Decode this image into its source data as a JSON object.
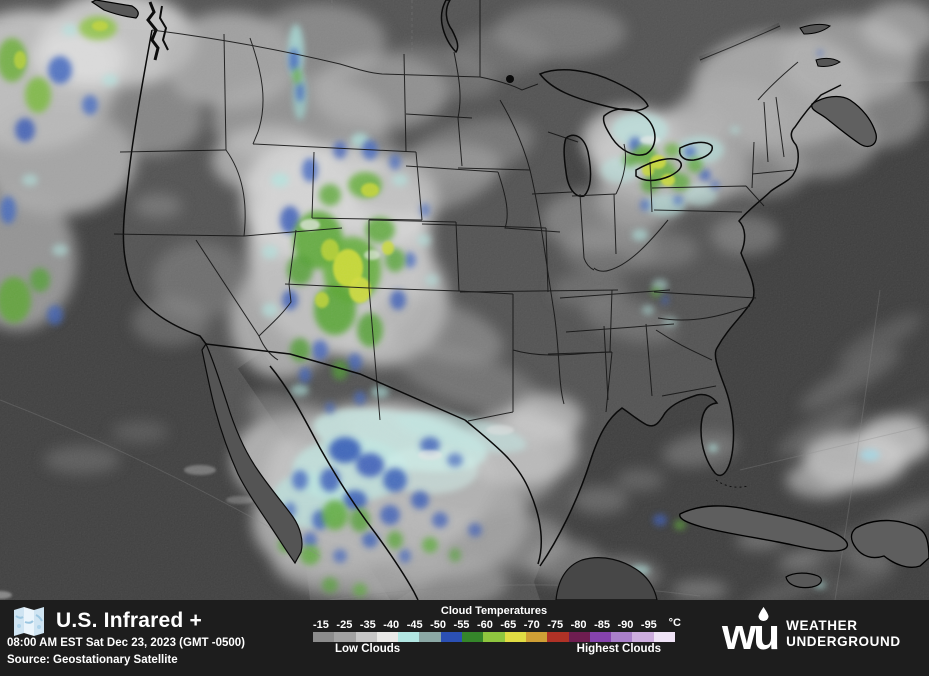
{
  "footer": {
    "title": "U.S. Infrared +",
    "timestamp": "08:00 AM EST Sat Dec 23, 2023 (GMT -0500)",
    "source": "Source: Geostationary Satellite"
  },
  "legend": {
    "title": "Cloud Temperatures",
    "unit": "°C",
    "tick_labels": [
      "-15",
      "-25",
      "-35",
      "-40",
      "-45",
      "-50",
      "-55",
      "-60",
      "-65",
      "-70",
      "-75",
      "-80",
      "-85",
      "-90",
      "-95"
    ],
    "swatches": [
      "#8c8c8c",
      "#a2a2a2",
      "#c6c6c6",
      "#e8e8e6",
      "#b2e6e2",
      "#8ba8a5",
      "#2b50b4",
      "#35862a",
      "#8fc63f",
      "#e0dc43",
      "#cf9f35",
      "#b03226",
      "#6e1d50",
      "#8643ad",
      "#a97fc9",
      "#cdadde",
      "#efe3f6"
    ],
    "low_label": "Low Clouds",
    "high_label": "Highest Clouds"
  },
  "brand": {
    "logo_text": "wu",
    "name_line1": "WEATHER",
    "name_line2": "UNDERGROUND"
  }
}
